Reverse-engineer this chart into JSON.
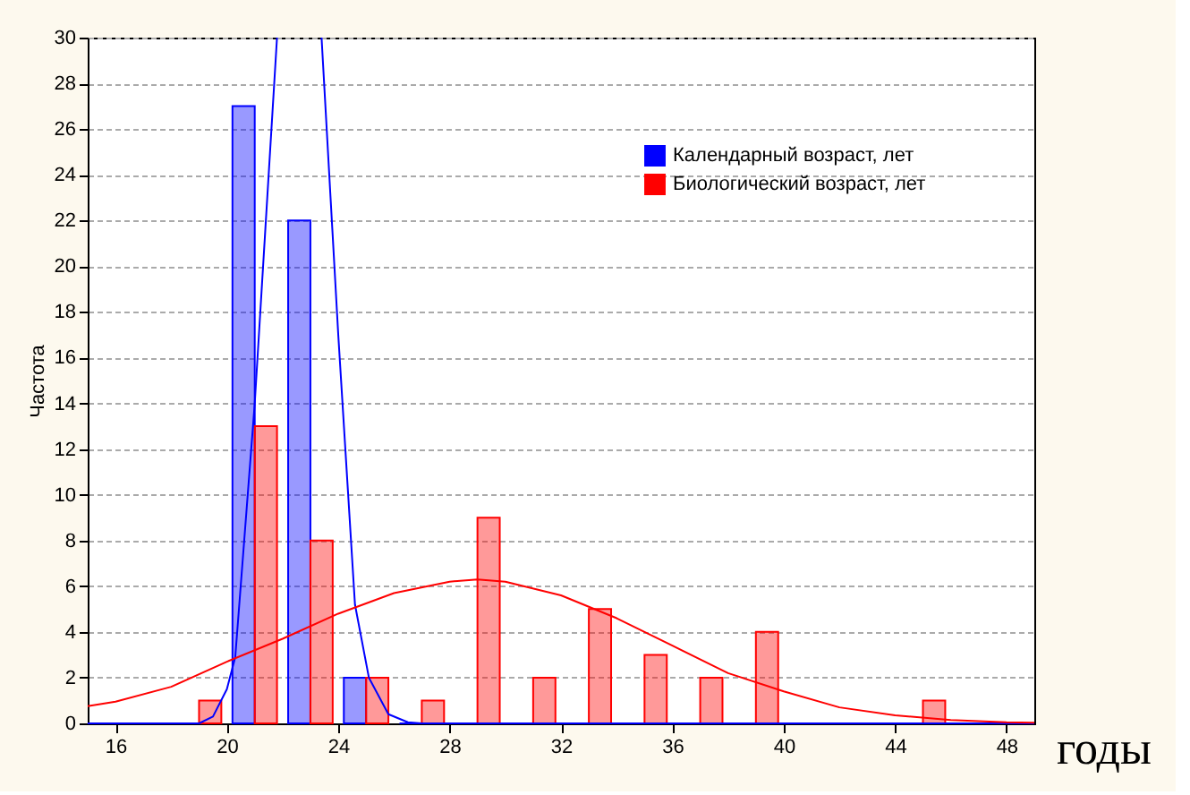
{
  "chart_data": {
    "type": "histogram",
    "xlabel": "годы",
    "ylabel": "Частота",
    "bins": [
      16,
      18,
      20,
      22,
      24,
      26,
      28,
      30,
      32,
      34,
      36,
      38,
      40,
      42,
      44,
      46,
      48
    ],
    "series": [
      {
        "name": "Календарный возраст, лет",
        "color": "#0000ff",
        "values": [
          0,
          0,
          27,
          22,
          2,
          0,
          0,
          0,
          0,
          0,
          0,
          0,
          0,
          0,
          0,
          0
        ]
      },
      {
        "name": "Биологический возраст, лет",
        "color": "#ff0000",
        "values": [
          0,
          1,
          13,
          8,
          2,
          1,
          9,
          2,
          5,
          3,
          2,
          4,
          0,
          0,
          1,
          0
        ]
      },
      {
        "type": "line",
        "color": "#0000ff",
        "x": [
          15,
          19,
          19.5,
          20,
          20.3,
          21,
          21.4,
          21.8,
          22.6,
          23.4,
          24,
          24.6,
          25.1,
          25.8,
          26.5,
          27,
          49
        ],
        "values": [
          0,
          0,
          0.3,
          1.5,
          2.9,
          14,
          22,
          30,
          null,
          30,
          17,
          5.2,
          2,
          0.4,
          0.05,
          0,
          0
        ]
      },
      {
        "type": "line",
        "color": "#ff0000",
        "x": [
          15,
          16,
          18,
          20,
          22,
          24,
          26,
          28,
          29,
          30,
          32,
          34,
          36,
          38,
          40,
          42,
          44,
          46,
          48,
          49
        ],
        "values": [
          0.75,
          0.95,
          1.6,
          2.7,
          3.7,
          4.8,
          5.7,
          6.2,
          6.3,
          6.2,
          5.6,
          4.6,
          3.4,
          2.2,
          1.4,
          0.7,
          0.35,
          0.15,
          0.05,
          0.03
        ]
      }
    ],
    "xlim": [
      15,
      49
    ],
    "xticks": [
      16,
      20,
      24,
      28,
      32,
      36,
      40,
      44,
      48
    ],
    "ylim": [
      0,
      30
    ],
    "yticks": [
      0,
      2,
      4,
      6,
      8,
      10,
      12,
      14,
      16,
      18,
      20,
      22,
      24,
      26,
      28,
      30
    ],
    "grid": "y",
    "legend": "top right"
  }
}
